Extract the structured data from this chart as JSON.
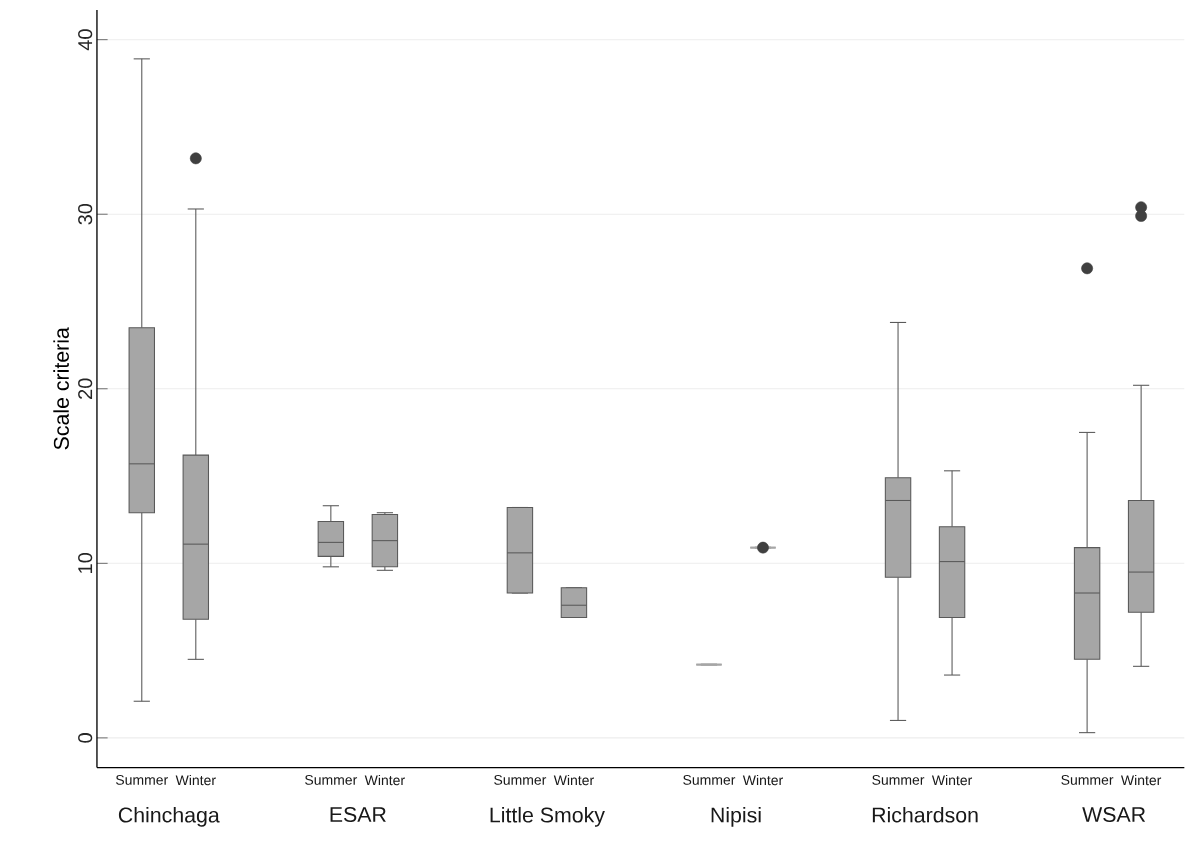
{
  "chart_data": {
    "type": "box",
    "ylabel": "Scale criteria",
    "categories": [
      "Summer",
      "Winter",
      "Summer",
      "Winter",
      "Summer",
      "Winter",
      "Summer",
      "Winter",
      "Summer",
      "Winter",
      "Summer",
      "Winter"
    ],
    "annotations": [
      "Chinchaga",
      "ESAR",
      "Little Smoky",
      "Nipisi",
      "Richardson",
      "WSAR"
    ],
    "ylim": [
      -1.7,
      41.7
    ],
    "yticks": [
      0,
      10,
      20,
      30,
      40
    ],
    "grid": "y",
    "series": [
      {
        "color": "#a6a6a6",
        "boxes": [
          {
            "low": 2.1,
            "q1": 12.9,
            "median": 15.7,
            "q3": 23.5,
            "high": 38.9
          },
          {
            "low": 4.5,
            "q1": 6.8,
            "median": 11.1,
            "q3": 16.2,
            "high": 30.3,
            "outliers": [
              33.2
            ]
          },
          {
            "low": 9.8,
            "q1": 10.4,
            "median": 11.2,
            "q3": 12.4,
            "high": 13.3
          },
          {
            "low": 9.6,
            "q1": 9.8,
            "median": 11.3,
            "q3": 12.8,
            "high": 12.9
          },
          {
            "low": 8.3,
            "q1": 8.3,
            "median": 10.6,
            "q3": 13.2,
            "high": 13.2
          },
          {
            "low": 6.9,
            "q1": 6.9,
            "median": 7.6,
            "q3": 8.6,
            "high": 8.6
          },
          {
            "low": 4.2,
            "q1": 4.2,
            "median": 4.2,
            "q3": 4.2,
            "high": 4.2
          },
          {
            "low": 10.9,
            "q1": 10.9,
            "median": 10.9,
            "q3": 10.9,
            "high": 10.9,
            "outliers": [
              10.9
            ]
          },
          {
            "low": 1.0,
            "q1": 9.2,
            "median": 13.6,
            "q3": 14.9,
            "high": 23.8
          },
          {
            "low": 3.6,
            "q1": 6.9,
            "median": 10.1,
            "q3": 12.1,
            "high": 15.3
          },
          {
            "low": 0.3,
            "q1": 4.5,
            "median": 8.3,
            "q3": 10.9,
            "high": 17.5,
            "outliers": [
              26.9
            ]
          },
          {
            "low": 4.1,
            "q1": 7.2,
            "median": 9.5,
            "q3": 13.6,
            "high": 20.2,
            "outliers": [
              29.9,
              30.4
            ]
          }
        ]
      }
    ]
  }
}
